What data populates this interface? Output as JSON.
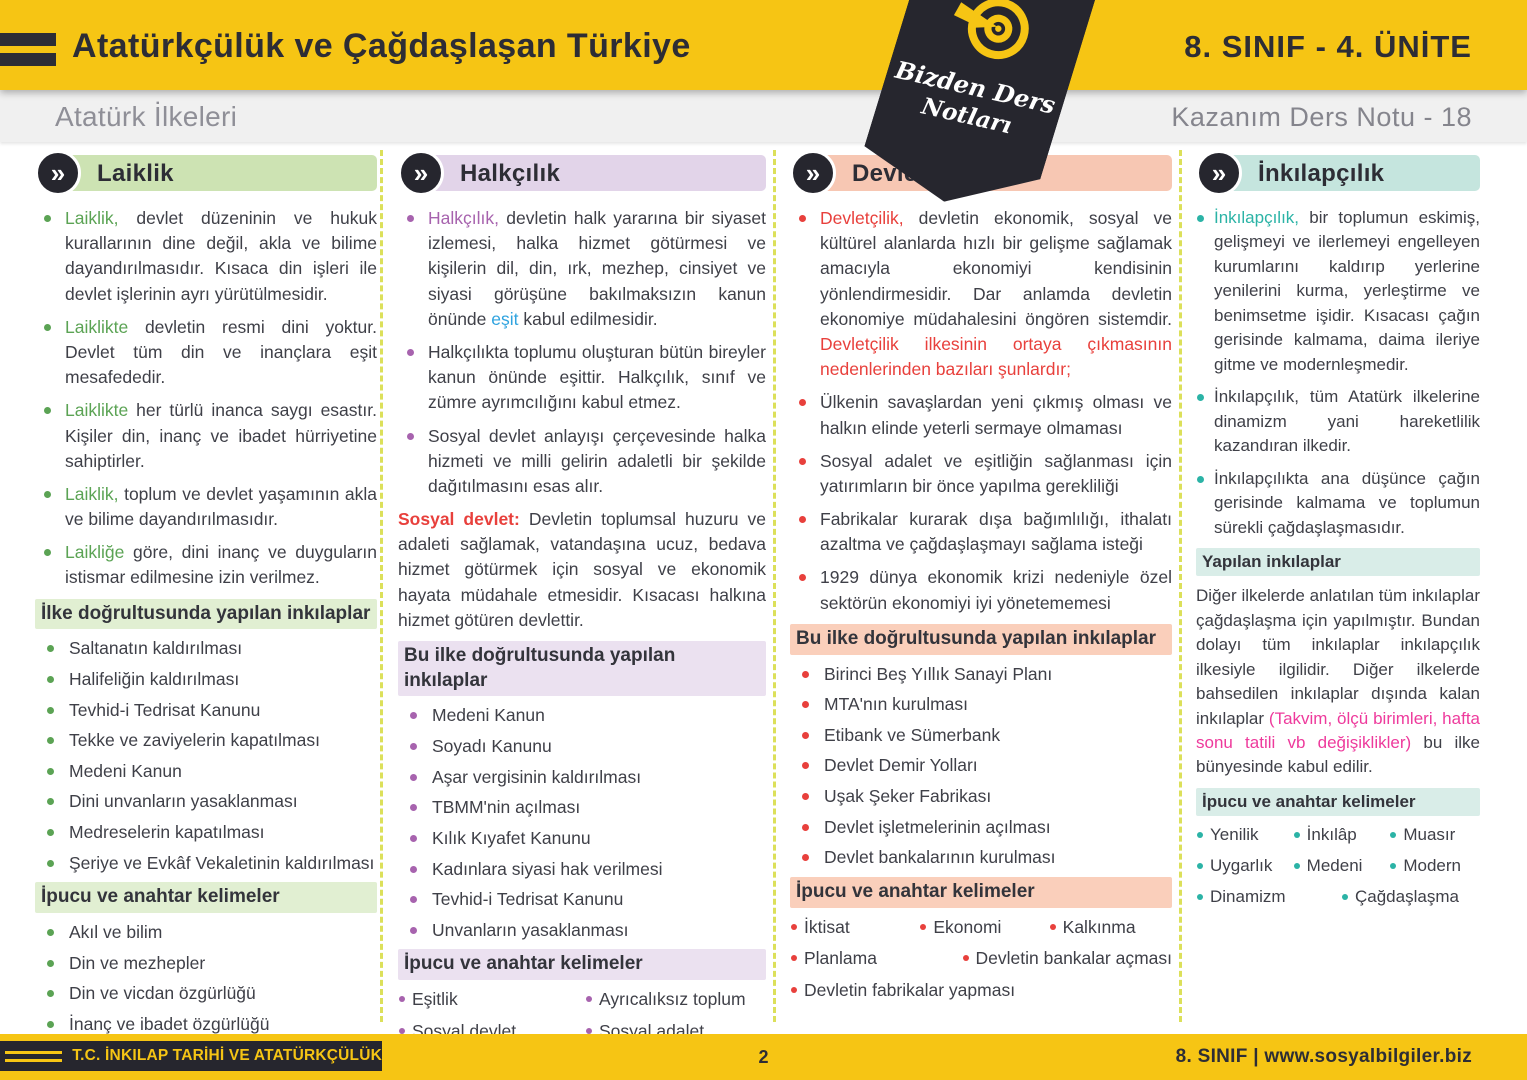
{
  "header": {
    "title": "Atatürkçülük ve Çağdaşlaşan Türkiye",
    "unit": "8. SINIF - 4. ÜNİTE",
    "subtitle": "Atatürk İlkeleri",
    "note_label": "Kazanım Ders Notu - 18",
    "badge": {
      "line1": "Bizden Ders",
      "line2": "Notları"
    }
  },
  "icons": {
    "chevron": "»"
  },
  "palette": {
    "red": "#E8403C",
    "blue": "#2FA3DF",
    "pink": "#EE3A9C",
    "yellow": "#F6C514",
    "dark": "#2D2D35"
  },
  "columns": [
    {
      "id": "laiklik",
      "title": "Laiklik",
      "theme": {
        "accent": "#5BA354",
        "band": "#CDE3B3",
        "tint": "#E1EFD2"
      },
      "blocks": [
        {
          "type": "bullet",
          "segs": [
            {
              "t": "Laiklik,",
              "c": "accent"
            },
            {
              "t": " devlet düzeninin ve hukuk kurallarının dine değil, akla ve bilime dayandırılmasıdır. Kısaca din işleri ile devlet işlerinin ayrı yürütülmesidir."
            }
          ]
        },
        {
          "type": "bullet",
          "segs": [
            {
              "t": "Laiklikte",
              "c": "accent"
            },
            {
              "t": " devletin resmi dini yoktur. Devlet tüm din ve inançlara eşit mesafededir."
            }
          ]
        },
        {
          "type": "bullet",
          "segs": [
            {
              "t": "Laiklikte",
              "c": "accent"
            },
            {
              "t": " her türlü inanca saygı esastır. Kişiler din, inanç ve ibadet hürriyetine sahiptirler."
            }
          ]
        },
        {
          "type": "bullet",
          "segs": [
            {
              "t": "Laiklik,",
              "c": "accent"
            },
            {
              "t": " toplum ve devlet yaşamının akla ve bilime dayandırılmasıdır."
            }
          ]
        },
        {
          "type": "bullet",
          "segs": [
            {
              "t": "Laikliğe",
              "c": "accent"
            },
            {
              "t": " göre, dini inanç ve duyguların istismar edilmesine izin verilmez."
            }
          ]
        },
        {
          "type": "heading",
          "text": "İlke doğrultusunda yapılan inkılaplar"
        },
        {
          "type": "item",
          "text": "Saltanatın kaldırılması"
        },
        {
          "type": "item",
          "text": "Halifeliğin kaldırılması"
        },
        {
          "type": "item",
          "text": "Tevhid-i Tedrisat Kanunu"
        },
        {
          "type": "item",
          "text": "Tekke ve zaviyelerin kapatılması"
        },
        {
          "type": "item",
          "text": "Medeni Kanun"
        },
        {
          "type": "item",
          "text": "Dini unvanların yasaklanması"
        },
        {
          "type": "item",
          "text": "Medreselerin kapatılması"
        },
        {
          "type": "item",
          "text": "Şeriye ve Evkâf Vekaletinin kaldırılması"
        },
        {
          "type": "heading",
          "text": "İpucu ve anahtar kelimeler"
        },
        {
          "type": "item",
          "text": "Akıl ve bilim"
        },
        {
          "type": "item",
          "text": "Din ve mezhepler"
        },
        {
          "type": "item",
          "text": "Din ve vicdan özgürlüğü"
        },
        {
          "type": "item",
          "text": "İnanç ve ibadet özgürlüğü"
        }
      ]
    },
    {
      "id": "halkcilik",
      "title": "Halkçılık",
      "theme": {
        "accent": "#A763AE",
        "band": "#E2D4E9",
        "tint": "#EBE1F0"
      },
      "blocks": [
        {
          "type": "bullet",
          "segs": [
            {
              "t": "Halkçılık,",
              "c": "accent"
            },
            {
              "t": " devletin halk yararına bir siyaset izlemesi, halka hizmet götürmesi ve kişilerin dil, din, ırk, mezhep, cinsiyet ve siyasi görüşüne bakılmaksızın kanun önünde "
            },
            {
              "t": "eşit",
              "c": "blue"
            },
            {
              "t": " kabul edilmesidir."
            }
          ]
        },
        {
          "type": "bullet",
          "segs": [
            {
              "t": "Halkçılıkta toplumu oluşturan bütün bireyler kanun önünde eşittir. Halkçılık, sınıf ve zümre ayrımcılığını kabul etmez."
            }
          ]
        },
        {
          "type": "bullet",
          "segs": [
            {
              "t": "Sosyal devlet anlayışı çerçevesinde halka hizmeti ve milli gelirin adaletli bir şekilde dağıtılmasını esas alır."
            }
          ]
        },
        {
          "type": "para",
          "segs": [
            {
              "t": "Sosyal devlet:",
              "c": "red"
            },
            {
              "t": " Devletin toplumsal huzuru ve adaleti sağlamak, vatandaşına ucuz, bedava hizmet götürmek için sosyal ve ekonomik hayata müdahale etmesidir. Kısacası halkına hizmet götüren devlettir."
            }
          ]
        },
        {
          "type": "heading",
          "text": "Bu ilke doğrultusunda yapılan inkılaplar"
        },
        {
          "type": "item",
          "text": "Medeni Kanun"
        },
        {
          "type": "item",
          "text": "Soyadı Kanunu"
        },
        {
          "type": "item",
          "text": "Aşar vergisinin kaldırılması"
        },
        {
          "type": "item",
          "text": "TBMM'nin açılması"
        },
        {
          "type": "item",
          "text": "Kılık Kıyafet Kanunu"
        },
        {
          "type": "item",
          "text": "Kadınlara siyasi hak verilmesi"
        },
        {
          "type": "item",
          "text": "Tevhid-i Tedrisat Kanunu"
        },
        {
          "type": "item",
          "text": "Unvanların yasaklanması"
        },
        {
          "type": "heading",
          "text": "İpucu ve anahtar kelimeler"
        },
        {
          "type": "kwrow",
          "words": [
            "Eşitlik",
            "Ayrıcalıksız toplum"
          ]
        },
        {
          "type": "kwrow",
          "words": [
            "Sosyal devlet",
            "Sosyal adalet"
          ]
        }
      ]
    },
    {
      "id": "devletcilik",
      "title": "Devletçilik",
      "theme": {
        "accent": "#E8403C",
        "band": "#F7C7B3",
        "tint": "#FACFBB"
      },
      "blocks": [
        {
          "type": "bullet",
          "segs": [
            {
              "t": "Devletçilik,",
              "c": "accent"
            },
            {
              "t": " devletin ekonomik, sosyal ve kültürel alanlarda hızlı bir gelişme sağlamak amacıyla ekonomiyi kendisinin yönlendirmesidir. Dar anlamda devletin ekonomiye müdahalesini öngören sistemdir. "
            },
            {
              "t": "Devletçilik ilkesinin ortaya çıkmasının nedenlerinden bazıları şunlardır;",
              "c": "red"
            }
          ]
        },
        {
          "type": "bullet",
          "segs": [
            {
              "t": "Ülkenin savaşlardan yeni çıkmış olması ve halkın elinde yeterli sermaye olmaması"
            }
          ]
        },
        {
          "type": "bullet",
          "segs": [
            {
              "t": "Sosyal adalet ve eşitliğin sağlanması için yatırımların bir önce yapılma gerekliliği"
            }
          ]
        },
        {
          "type": "bullet",
          "segs": [
            {
              "t": "Fabrikalar kurarak dışa bağımlılığı, ithalatı azaltma ve çağdaşlaşmayı sağlama isteği"
            }
          ]
        },
        {
          "type": "bullet",
          "segs": [
            {
              "t": "1929 dünya ekonomik krizi nedeniyle özel sektörün ekonomiyi iyi yönetememesi"
            }
          ]
        },
        {
          "type": "heading",
          "text": "Bu ilke doğrultusunda yapılan inkılaplar"
        },
        {
          "type": "item",
          "text": "Birinci Beş Yıllık Sanayi Planı"
        },
        {
          "type": "item",
          "text": "MTA'nın kurulması"
        },
        {
          "type": "item",
          "text": "Etibank ve Sümerbank"
        },
        {
          "type": "item",
          "text": "Devlet Demir Yolları"
        },
        {
          "type": "item",
          "text": "Uşak Şeker Fabrikası"
        },
        {
          "type": "item",
          "text": "Devlet işletmelerinin açılması"
        },
        {
          "type": "item",
          "text": "Devlet bankalarının kurulması"
        },
        {
          "type": "heading",
          "text": "İpucu ve anahtar kelimeler"
        },
        {
          "type": "kwrow",
          "words": [
            "İktisat",
            "Ekonomi",
            "Kalkınma"
          ]
        },
        {
          "type": "kwrow",
          "words": [
            "Planlama",
            "Devletin bankalar açması"
          ]
        },
        {
          "type": "kwrow",
          "words": [
            "Devletin fabrikalar yapması"
          ]
        }
      ]
    },
    {
      "id": "inkilapcilik",
      "title": "İnkılapçılık",
      "theme": {
        "accent": "#2BB3A6",
        "band": "#C5E5DE",
        "tint": "#D9EDE8"
      },
      "blocks": [
        {
          "type": "bullet",
          "segs": [
            {
              "t": "İnkılapçılık,",
              "c": "accent"
            },
            {
              "t": " bir toplumun eskimiş, gelişmeyi ve ilerlemeyi engelleyen kurumlarını kaldırıp yerlerine yenilerini kurma, yerleştirme ve benimsetme işidir. Kısacası çağın gerisinde kalmama, daima ileriye gitme ve modernleşmedir."
            }
          ]
        },
        {
          "type": "bullet",
          "segs": [
            {
              "t": "İnkılapçılık, tüm Atatürk ilkelerine dinamizm yani hareketlilik kazandıran ilkedir."
            }
          ]
        },
        {
          "type": "bullet",
          "segs": [
            {
              "t": "İnkılapçılıkta ana düşünce çağın gerisinde kalmama ve toplumun sürekli çağdaşlaşmasıdır."
            }
          ]
        },
        {
          "type": "heading",
          "text": "Yapılan inkılaplar"
        },
        {
          "type": "para",
          "segs": [
            {
              "t": "Diğer ilkelerde anlatılan tüm inkılaplar çağdaşlaşma için yapılmıştır. Bundan dolayı tüm inkılaplar inkılapçılık ilkesiyle ilgilidir. Diğer ilkelerde bahsedilen inkılaplar dışında kalan inkılaplar "
            },
            {
              "t": "(Takvim, ölçü birimleri, hafta sonu tatili vb değişiklikler)",
              "c": "pink"
            },
            {
              "t": " bu ilke bünyesinde kabul edilir."
            }
          ]
        },
        {
          "type": "heading",
          "text": "İpucu ve anahtar kelimeler"
        },
        {
          "type": "kwrow",
          "words": [
            "Yenilik",
            "İnkılâp",
            "Muasır"
          ]
        },
        {
          "type": "kwrow",
          "words": [
            "Uygarlık",
            "Medeni",
            "Modern"
          ]
        },
        {
          "type": "kwrow",
          "words": [
            "Dinamizm",
            "Çağdaşlaşma"
          ]
        }
      ]
    }
  ],
  "footer": {
    "left": "T.C. İNKILAP TARİHİ VE ATATÜRKÇÜLÜK",
    "page": "2",
    "right": "8. SINIF  |  www.sosyalbilgiler.biz"
  }
}
